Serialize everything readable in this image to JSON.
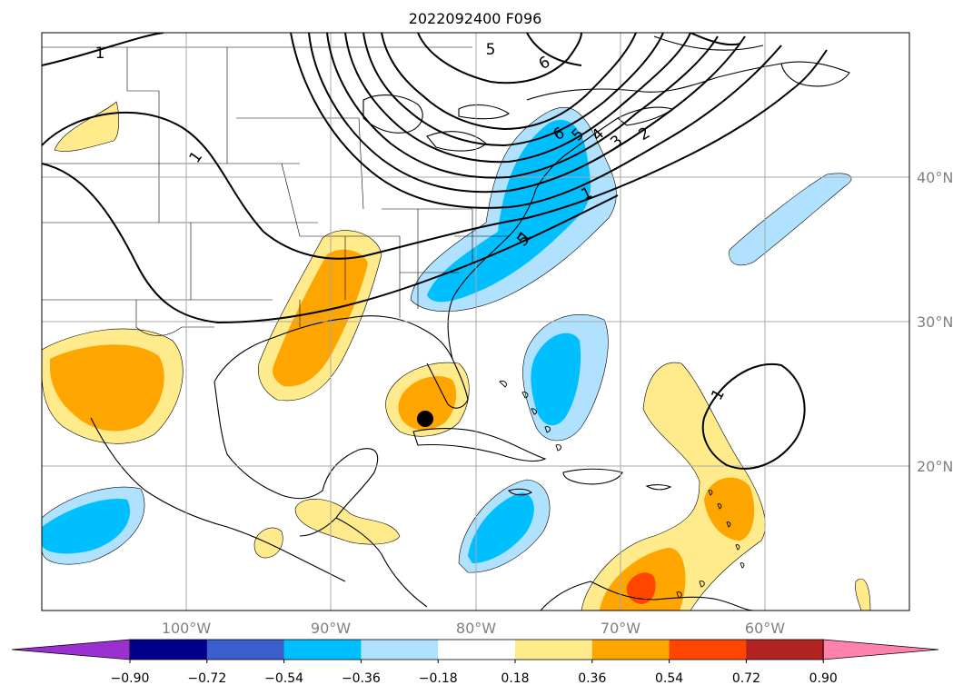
{
  "title": "2022092400 F096",
  "map": {
    "lon_labels": [
      "100°W",
      "90°W",
      "80°W",
      "70°W",
      "60°W"
    ],
    "lat_labels": [
      "40°N",
      "30°N",
      "20°N"
    ],
    "contour_labels": [
      "1",
      "1",
      "1",
      "1",
      "1",
      "2",
      "3",
      "4",
      "5",
      "6",
      "5",
      "6",
      "5"
    ],
    "marker": "storm-center-dot"
  },
  "colorbar": {
    "ticks": [
      "−0.90",
      "−0.72",
      "−0.54",
      "−0.36",
      "−0.18",
      "0.18",
      "0.36",
      "0.54",
      "0.72",
      "0.90"
    ],
    "colors": [
      "#9b30d0",
      "#00008b",
      "#3a5fcd",
      "#00bfff",
      "#b0e2ff",
      "#ffffff",
      "#ffeb8c",
      "#ffa500",
      "#ff4500",
      "#b22222",
      "#ff82ab"
    ]
  },
  "colors": {
    "land": "#000000",
    "grid": "#a9a9a9",
    "contour": "#000000",
    "lt_blue": "#b0e2ff",
    "blue": "#00bfff",
    "lt_yellow": "#ffeb8c",
    "orange": "#ffa500",
    "red": "#ff4500"
  }
}
